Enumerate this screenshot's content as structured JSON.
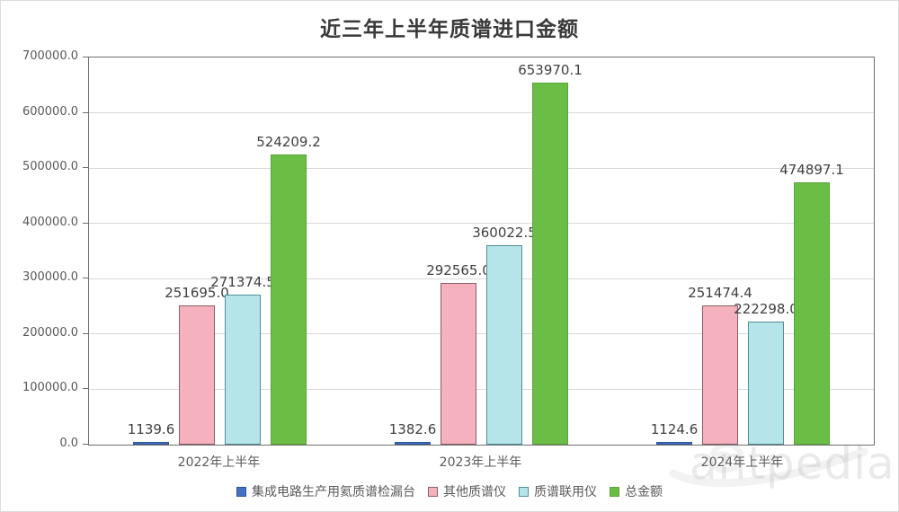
{
  "title": "近三年上半年质谱进口金额",
  "watermark_text": "antpedia",
  "colors": {
    "axis_line": "#6e6e6e",
    "gridline": "#d9d9d9",
    "tick_label": "#595959",
    "data_label": "#404040",
    "category_label": "#595959",
    "title": "#3a3a3a"
  },
  "chart_data": {
    "type": "bar",
    "title": "近三年上半年质谱进口金额",
    "categories": [
      "2022年上半年",
      "2023年上半年",
      "2024年上半年"
    ],
    "series": [
      {
        "name": "集成电路生产用氦质谱检漏台",
        "color": "#4472c4",
        "border": "#2d5597",
        "values": [
          1139.6,
          1382.6,
          1124.6
        ]
      },
      {
        "name": "其他质谱仪",
        "color": "#f5b1bd",
        "border": "#8c5f68",
        "values": [
          251695.0,
          292565.0,
          251474.4
        ]
      },
      {
        "name": "质谱联用仪",
        "color": "#b5e5e9",
        "border": "#4f8f96",
        "values": [
          271374.5,
          360022.5,
          222298.0
        ]
      },
      {
        "name": "总金额",
        "color": "#6bbe45",
        "border": "#5aa437",
        "values": [
          524209.2,
          653970.1,
          474897.1
        ]
      }
    ],
    "ylim": [
      0,
      700000
    ],
    "ytick_step": 100000,
    "ytick_labels": [
      "0.0",
      "100000.0",
      "200000.0",
      "300000.0",
      "400000.0",
      "500000.0",
      "600000.0",
      "700000.0"
    ],
    "xlabel": "",
    "ylabel": "",
    "grid": true,
    "legend_position": "bottom",
    "value_label_decimals": 1
  }
}
